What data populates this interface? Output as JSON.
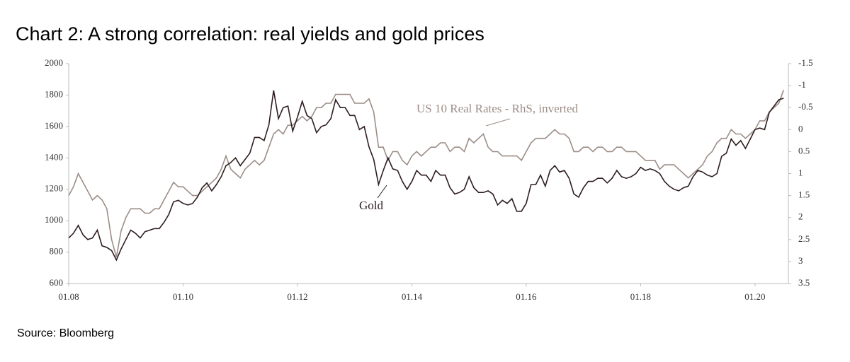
{
  "chart_data": {
    "type": "line",
    "title": "Chart 2: A strong correlation: real yields and gold prices",
    "source": "Source: Bloomberg",
    "x": [
      "01.08",
      "02.08",
      "03.08",
      "04.08",
      "05.08",
      "06.08",
      "07.08",
      "08.08",
      "09.08",
      "10.08",
      "11.08",
      "12.08",
      "01.09",
      "02.09",
      "03.09",
      "04.09",
      "05.09",
      "06.09",
      "07.09",
      "08.09",
      "09.09",
      "10.09",
      "11.09",
      "12.09",
      "01.10",
      "02.10",
      "03.10",
      "04.10",
      "05.10",
      "06.10",
      "07.10",
      "08.10",
      "09.10",
      "10.10",
      "11.10",
      "12.10",
      "01.11",
      "02.11",
      "03.11",
      "04.11",
      "05.11",
      "06.11",
      "07.11",
      "08.11",
      "09.11",
      "10.11",
      "11.11",
      "12.11",
      "01.12",
      "02.12",
      "03.12",
      "04.12",
      "05.12",
      "06.12",
      "07.12",
      "08.12",
      "09.12",
      "10.12",
      "11.12",
      "12.12",
      "01.13",
      "02.13",
      "03.13",
      "04.13",
      "05.13",
      "06.13",
      "07.13",
      "08.13",
      "09.13",
      "10.13",
      "11.13",
      "12.13",
      "01.14",
      "02.14",
      "03.14",
      "04.14",
      "05.14",
      "06.14",
      "07.14",
      "08.14",
      "09.14",
      "10.14",
      "11.14",
      "12.14",
      "01.15",
      "02.15",
      "03.15",
      "04.15",
      "05.15",
      "06.15",
      "07.15",
      "08.15",
      "09.15",
      "10.15",
      "11.15",
      "12.15",
      "01.16",
      "02.16",
      "03.16",
      "04.16",
      "05.16",
      "06.16",
      "07.16",
      "08.16",
      "09.16",
      "10.16",
      "11.16",
      "12.16",
      "01.17",
      "02.17",
      "03.17",
      "04.17",
      "05.17",
      "06.17",
      "07.17",
      "08.17",
      "09.17",
      "10.17",
      "11.17",
      "12.17",
      "01.18",
      "02.18",
      "03.18",
      "04.18",
      "05.18",
      "06.18",
      "07.18",
      "08.18",
      "09.18",
      "10.18",
      "11.18",
      "12.18",
      "01.19",
      "02.19",
      "03.19",
      "04.19",
      "05.19",
      "06.19",
      "07.19",
      "08.19",
      "09.19",
      "10.19",
      "11.19",
      "12.19",
      "01.20",
      "02.20",
      "03.20",
      "04.20",
      "05.20",
      "06.20",
      "07.20"
    ],
    "series": [
      {
        "name": "Gold",
        "color": "#2e1d20",
        "values": [
          890,
          920,
          970,
          910,
          880,
          890,
          940,
          840,
          830,
          810,
          750,
          820,
          880,
          940,
          920,
          890,
          930,
          940,
          950,
          950,
          990,
          1040,
          1120,
          1130,
          1110,
          1100,
          1110,
          1150,
          1210,
          1240,
          1190,
          1230,
          1280,
          1350,
          1370,
          1400,
          1350,
          1390,
          1430,
          1530,
          1530,
          1510,
          1610,
          1830,
          1650,
          1720,
          1730,
          1570,
          1660,
          1760,
          1670,
          1650,
          1560,
          1600,
          1610,
          1650,
          1770,
          1720,
          1720,
          1670,
          1670,
          1580,
          1600,
          1470,
          1390,
          1230,
          1320,
          1400,
          1330,
          1320,
          1250,
          1200,
          1250,
          1320,
          1290,
          1290,
          1250,
          1320,
          1290,
          1290,
          1210,
          1170,
          1180,
          1200,
          1280,
          1210,
          1180,
          1180,
          1190,
          1170,
          1100,
          1130,
          1110,
          1140,
          1060,
          1060,
          1110,
          1230,
          1230,
          1290,
          1220,
          1320,
          1350,
          1310,
          1320,
          1270,
          1170,
          1150,
          1210,
          1250,
          1250,
          1270,
          1270,
          1240,
          1270,
          1320,
          1280,
          1270,
          1280,
          1300,
          1340,
          1320,
          1330,
          1320,
          1300,
          1250,
          1220,
          1200,
          1190,
          1210,
          1220,
          1280,
          1320,
          1310,
          1290,
          1280,
          1300,
          1410,
          1430,
          1520,
          1480,
          1510,
          1460,
          1520,
          1580,
          1590,
          1580,
          1690,
          1730,
          1770,
          1780
        ]
      },
      {
        "name": "US 10 Real Rates - RhS, inverted",
        "color": "#9c8d86",
        "axis": "y2",
        "values": [
          1.5,
          1.3,
          1.0,
          1.2,
          1.4,
          1.6,
          1.5,
          1.6,
          1.8,
          2.5,
          2.9,
          2.3,
          2.0,
          1.8,
          1.8,
          1.8,
          1.9,
          1.9,
          1.8,
          1.8,
          1.6,
          1.4,
          1.2,
          1.3,
          1.3,
          1.4,
          1.5,
          1.5,
          1.4,
          1.3,
          1.2,
          1.1,
          0.9,
          0.6,
          0.9,
          1.0,
          1.1,
          0.9,
          0.8,
          0.7,
          0.8,
          0.7,
          0.4,
          0.1,
          0.0,
          0.1,
          -0.1,
          -0.1,
          -0.2,
          -0.3,
          -0.2,
          -0.3,
          -0.5,
          -0.5,
          -0.6,
          -0.6,
          -0.8,
          -0.8,
          -0.8,
          -0.8,
          -0.6,
          -0.6,
          -0.6,
          -0.7,
          -0.4,
          0.4,
          0.4,
          0.7,
          0.5,
          0.5,
          0.7,
          0.8,
          0.6,
          0.5,
          0.6,
          0.5,
          0.4,
          0.4,
          0.3,
          0.3,
          0.5,
          0.4,
          0.4,
          0.5,
          0.2,
          0.3,
          0.2,
          0.1,
          0.4,
          0.5,
          0.5,
          0.6,
          0.6,
          0.6,
          0.6,
          0.7,
          0.5,
          0.3,
          0.2,
          0.2,
          0.2,
          0.1,
          0.0,
          0.1,
          0.1,
          0.2,
          0.5,
          0.5,
          0.4,
          0.4,
          0.5,
          0.4,
          0.4,
          0.5,
          0.5,
          0.4,
          0.4,
          0.5,
          0.5,
          0.5,
          0.6,
          0.7,
          0.7,
          0.7,
          0.9,
          0.8,
          0.8,
          0.8,
          0.9,
          1.0,
          1.1,
          1.0,
          0.9,
          0.8,
          0.6,
          0.5,
          0.3,
          0.2,
          0.2,
          0.0,
          0.1,
          0.1,
          0.2,
          0.1,
          0.0,
          -0.2,
          -0.2,
          -0.4,
          -0.5,
          -0.6,
          -0.9
        ]
      }
    ],
    "xlim": [
      "01.08",
      "08.20"
    ],
    "xticks": [
      "01.08",
      "01.10",
      "01.12",
      "01.14",
      "01.16",
      "01.18",
      "01.20"
    ],
    "ylim": [
      600,
      2000
    ],
    "yticks": [
      600,
      800,
      1000,
      1200,
      1400,
      1600,
      1800,
      2000
    ],
    "y2lim": [
      3.5,
      -1.5
    ],
    "y2ticks": [
      3.5,
      3,
      2.5,
      2,
      1.5,
      1,
      0.5,
      0,
      -0.5,
      -1,
      -1.5
    ],
    "grid": false,
    "annotations": [
      {
        "text": "US 10 Real Rates - RhS, inverted",
        "series": 1
      },
      {
        "text": "Gold",
        "series": 0
      }
    ]
  }
}
